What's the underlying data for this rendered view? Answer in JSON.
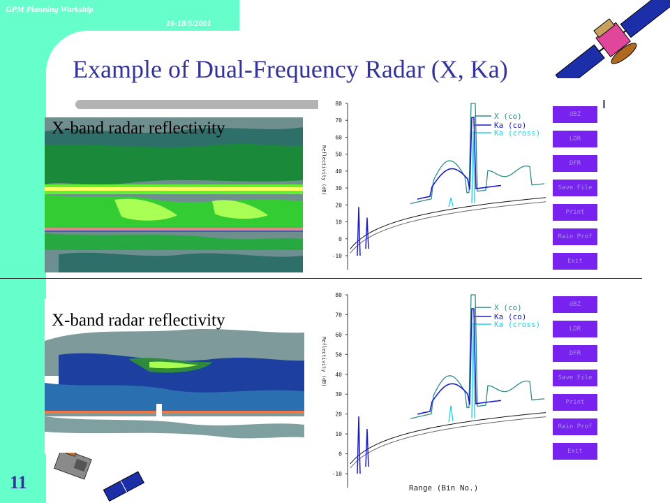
{
  "header": {
    "workshop": "GPM Planning Workship",
    "date": "16-18/5/2001"
  },
  "title": "Example of Dual-Frequency Radar (X, Ka)",
  "slide_number": "11",
  "panels": [
    {
      "image_label": "X-band radar reflectivity"
    },
    {
      "image_label": "X-band radar reflectivity"
    }
  ],
  "plots": [
    {
      "y_ticks": [
        "80",
        "70",
        "60",
        "50",
        "40",
        "30",
        "20",
        "10",
        "0",
        "-10"
      ],
      "y_label": "Reflectivity (dB)",
      "x_label": "",
      "legend": [
        {
          "label": "X (co)",
          "color": "#2e8b87"
        },
        {
          "label": "Ka (co)",
          "color": "#1a1acc"
        },
        {
          "label": "Ka (cross)",
          "color": "#19d4ec"
        }
      ],
      "buttons": [
        "dBZ",
        "LDR",
        "DFR",
        "Save File",
        "Print",
        "Rain Prof",
        "Exit"
      ]
    },
    {
      "y_ticks": [
        "80",
        "70",
        "60",
        "50",
        "40",
        "30",
        "20",
        "10",
        "0",
        "-10"
      ],
      "y_label": "Reflectivity (dB)",
      "x_label": "Range (Bin No.)",
      "legend": [
        {
          "label": "X (co)",
          "color": "#2e8b87"
        },
        {
          "label": "Ka (co)",
          "color": "#1a1acc"
        },
        {
          "label": "Ka (cross)",
          "color": "#19d4ec"
        }
      ],
      "buttons": [
        "dBZ",
        "LDR",
        "DFR",
        "Save File",
        "Print",
        "Rain Prof",
        "Exit"
      ]
    }
  ],
  "colors": {
    "band": "#66ffcc",
    "title": "#333399",
    "button": "#7722ee"
  }
}
